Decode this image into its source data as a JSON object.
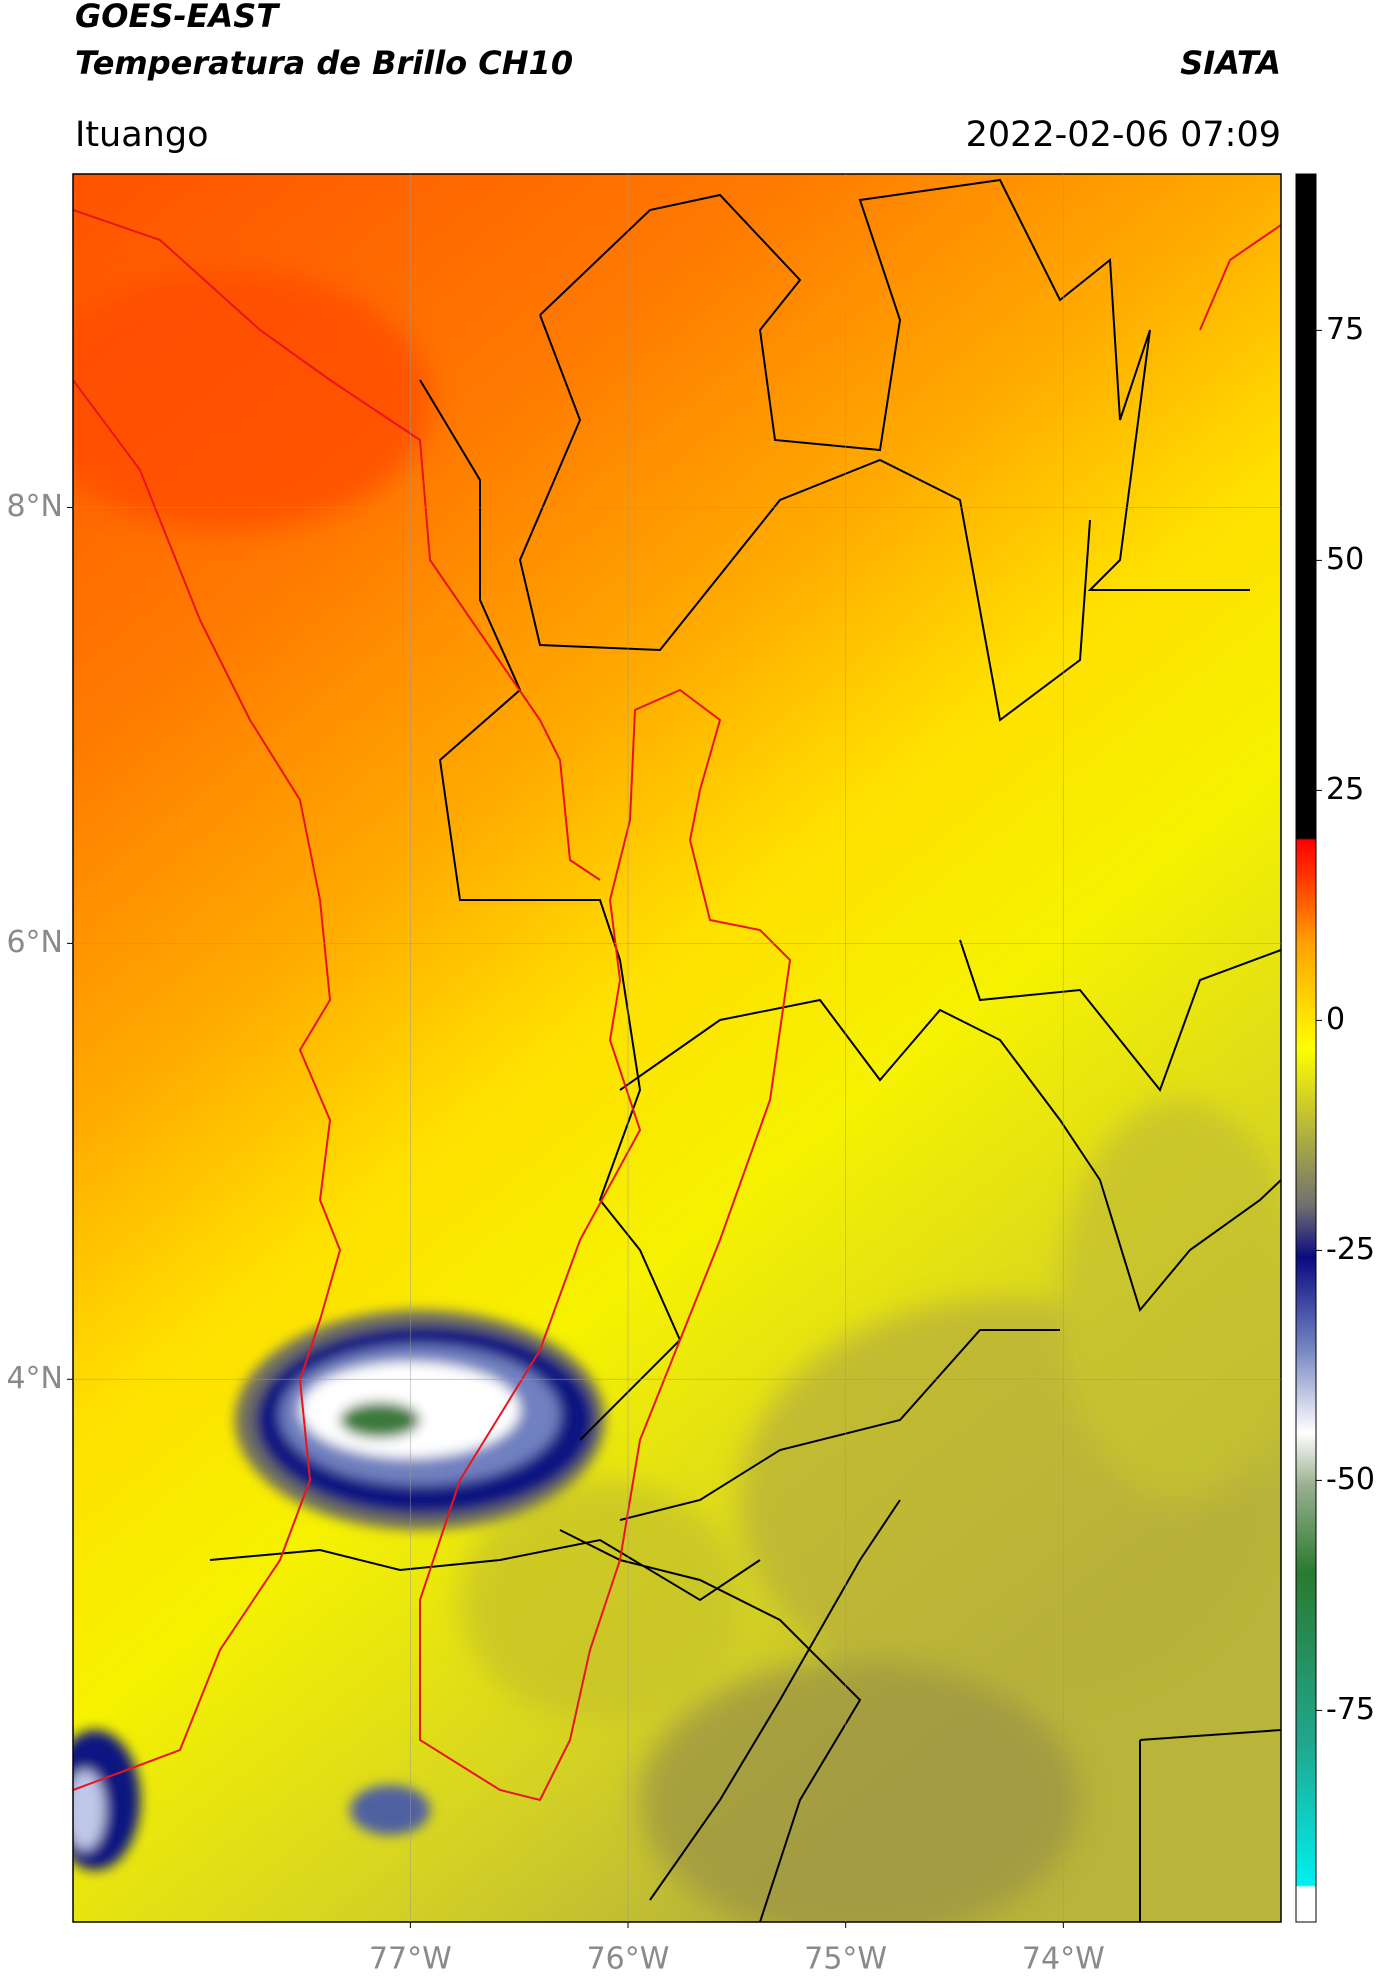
{
  "header": {
    "title": "GOES-EAST",
    "subtitle": "Temperatura de Brillo CH10",
    "source": "SIATA",
    "location": "Ituango",
    "datetime": "2022-02-06 07:09"
  },
  "map": {
    "latlim": [
      1.51,
      9.53
    ],
    "lonlim": [
      -78.55,
      -73.0
    ],
    "lat_ticks": [
      {
        "value": 8,
        "label": "8°N"
      },
      {
        "value": 6,
        "label": "6°N"
      },
      {
        "value": 4,
        "label": "4°N"
      }
    ],
    "lon_ticks": [
      {
        "value": -77,
        "label": "77°W"
      },
      {
        "value": -76,
        "label": "76°W"
      },
      {
        "value": -75,
        "label": "75°W"
      },
      {
        "value": -74,
        "label": "74°W"
      }
    ]
  },
  "colorbar": {
    "lim": [
      -98,
      92
    ],
    "ticks": [
      -75,
      -50,
      -25,
      0,
      25,
      50,
      75
    ]
  }
}
